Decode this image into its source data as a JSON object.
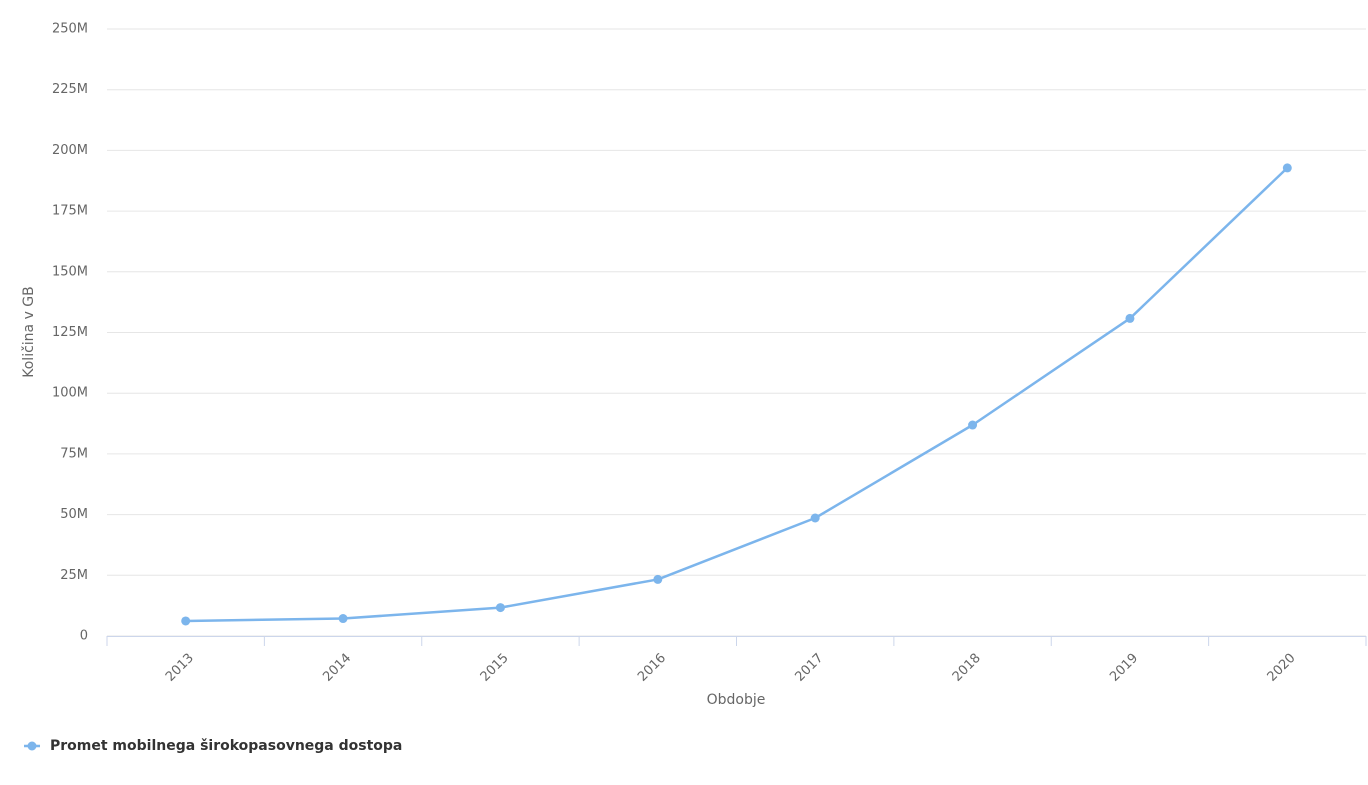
{
  "chart_data": {
    "type": "line",
    "y_axis_label": "Količina v GB",
    "x_axis_label": "Obdobje",
    "categories": [
      "2013",
      "2014",
      "2015",
      "2016",
      "2017",
      "2018",
      "2019",
      "2020"
    ],
    "series": [
      {
        "name": "Promet mobilnega širokopasovnega dostopa",
        "color": "#7cb5ec",
        "values": [
          6200000,
          7200000,
          11700000,
          23300000,
          48600000,
          86900000,
          130800000,
          192800000
        ]
      }
    ],
    "ylim": [
      0,
      250000000
    ],
    "yticks": [
      0,
      {
        "value": 25000000,
        "label": "25M"
      },
      {
        "value": 50000000,
        "label": "50M"
      },
      {
        "value": 75000000,
        "label": "75M"
      },
      {
        "value": 100000000,
        "label": "100M"
      },
      {
        "value": 125000000,
        "label": "125M"
      },
      {
        "value": 150000000,
        "label": "150M"
      },
      {
        "value": 175000000,
        "label": "175M"
      },
      {
        "value": 200000000,
        "label": "200M"
      },
      {
        "value": 225000000,
        "label": "225M"
      },
      {
        "value": 250000000,
        "label": "250M"
      }
    ],
    "grid": true,
    "legend_position": "bottom-left"
  }
}
